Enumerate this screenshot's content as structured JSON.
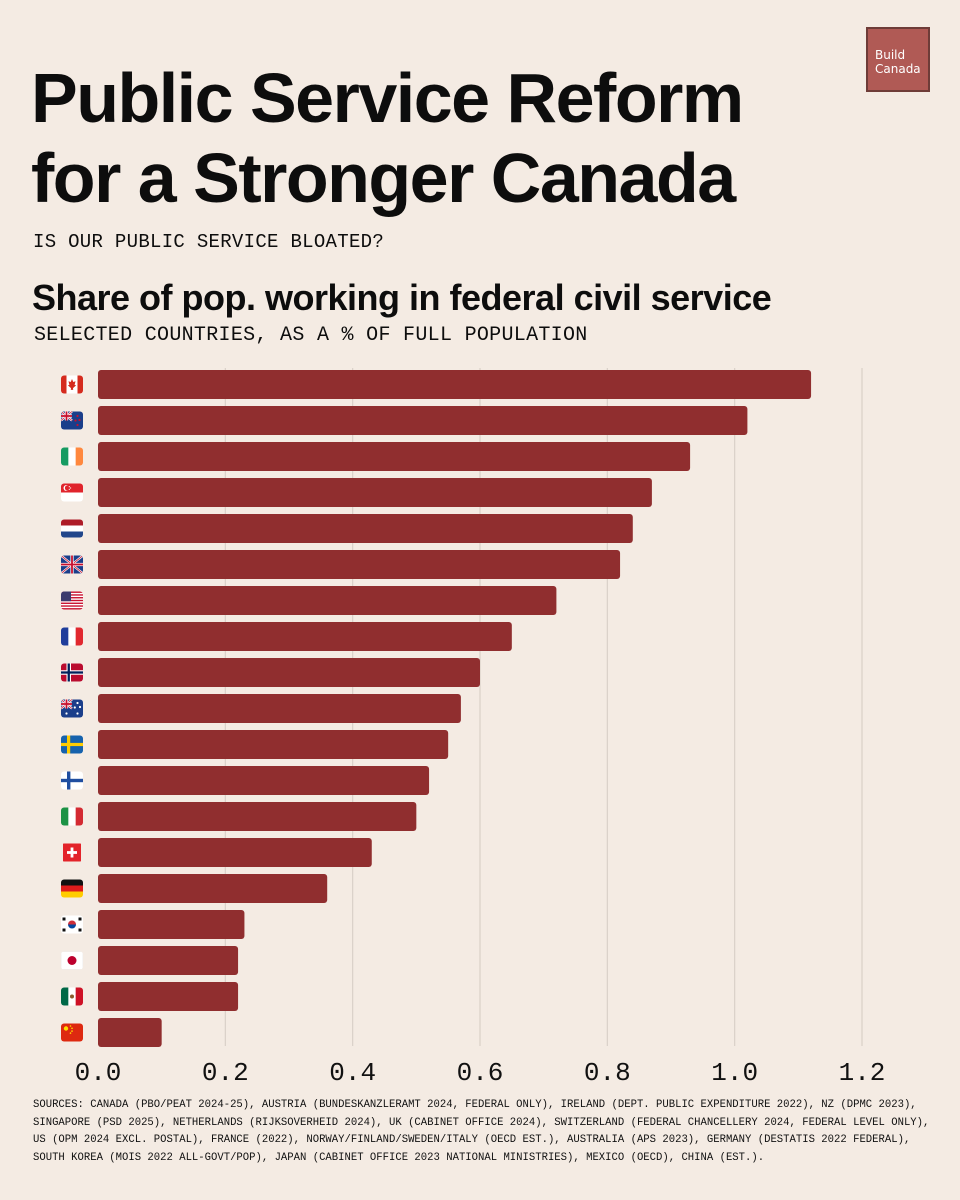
{
  "brand": {
    "line1": "Build",
    "line2": "Canada"
  },
  "header": {
    "title_line1": "Public Service Reform",
    "title_line2": "for a Stronger Canada",
    "kicker": "IS OUR PUBLIC SERVICE BLOATED?"
  },
  "chart_data": {
    "type": "bar",
    "orientation": "horizontal",
    "title": "Share of pop. working in federal civil service",
    "subtitle": "SELECTED COUNTRIES, AS A % OF FULL POPULATION",
    "categories": [
      "Canada",
      "New Zealand",
      "Ireland",
      "Singapore",
      "Netherlands",
      "United Kingdom",
      "United States",
      "France",
      "Norway",
      "Australia",
      "Sweden",
      "Finland",
      "Italy",
      "Switzerland",
      "Germany",
      "South Korea",
      "Japan",
      "Mexico",
      "China"
    ],
    "category_icons": [
      "flag-canada",
      "flag-new-zealand",
      "flag-ireland",
      "flag-singapore",
      "flag-netherlands",
      "flag-united-kingdom",
      "flag-united-states",
      "flag-france",
      "flag-norway",
      "flag-australia",
      "flag-sweden",
      "flag-finland",
      "flag-italy",
      "flag-switzerland",
      "flag-germany",
      "flag-south-korea",
      "flag-japan",
      "flag-mexico",
      "flag-china"
    ],
    "values": [
      1.12,
      1.02,
      0.93,
      0.87,
      0.84,
      0.82,
      0.72,
      0.65,
      0.6,
      0.57,
      0.55,
      0.52,
      0.5,
      0.43,
      0.36,
      0.23,
      0.22,
      0.22,
      0.1
    ],
    "xlim": [
      0,
      1.2
    ],
    "xticks": [
      "0.0",
      "0.2",
      "0.4",
      "0.6",
      "0.8",
      "1.0",
      "1.2"
    ],
    "grid": "vertical",
    "bar_color": "#902e2f",
    "grid_color": "#d9d0c8"
  },
  "sources": "SOURCES: CANADA (PBO/PEAT 2024-25), AUSTRIA (BUNDESKANZLERAMT 2024, FEDERAL ONLY), IRELAND (DEPT. PUBLIC EXPENDITURE 2022), NZ (DPMC 2023), SINGAPORE (PSD 2025), NETHERLANDS (RIJKSOVERHEID 2024), UK (CABINET OFFICE 2024), SWITZERLAND (FEDERAL CHANCELLERY 2024, FEDERAL LEVEL ONLY), US (OPM 2024 EXCL. POSTAL), FRANCE (2022), NORWAY/FINLAND/SWEDEN/ITALY (OECD EST.), AUSTRALIA (APS 2023), GERMANY (DESTATIS 2022 FEDERAL), SOUTH KOREA (MOIS 2022 ALL-GOVT/POP), JAPAN (CABINET OFFICE 2023 NATIONAL MINISTRIES), MEXICO (OECD), CHINA (EST.)."
}
